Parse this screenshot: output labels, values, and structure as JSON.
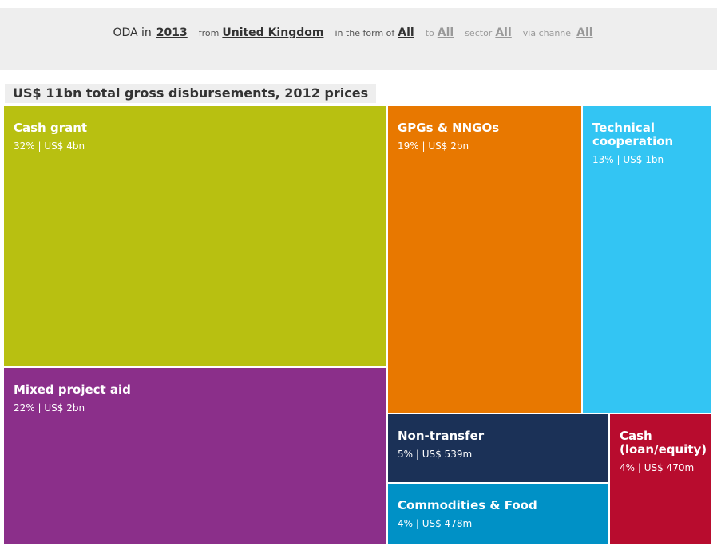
{
  "filters": {
    "oda_label": "ODA in",
    "year": "2013",
    "from_label": "from",
    "donor": "United Kingdom",
    "form_label": "in the form of",
    "form": "All",
    "to_label": "to",
    "to": "All",
    "sector_label": "sector",
    "sector": "All",
    "channel_label": "via channel",
    "channel": "All"
  },
  "chart_data": {
    "type": "treemap",
    "title": "US$ 11bn total gross disbursements, 2012 prices",
    "items": [
      {
        "name": "Cash grant",
        "name_lines": [
          "Cash grant"
        ],
        "percent": 32,
        "amount": "US$ 4bn",
        "value_label": "32% | US$ 4bn",
        "color": "#b8c011"
      },
      {
        "name": "Mixed project aid",
        "name_lines": [
          "Mixed project aid"
        ],
        "percent": 22,
        "amount": "US$ 2bn",
        "value_label": "22% | US$ 2bn",
        "color": "#8b2f8a"
      },
      {
        "name": "GPGs & NNGOs",
        "name_lines": [
          "GPGs & NNGOs"
        ],
        "percent": 19,
        "amount": "US$ 2bn",
        "value_label": "19% | US$ 2bn",
        "color": "#e87800"
      },
      {
        "name": "Technical cooperation",
        "name_lines": [
          "Technical",
          "cooperation"
        ],
        "percent": 13,
        "amount": "US$ 1bn",
        "value_label": "13% | US$ 1bn",
        "color": "#33c5f3"
      },
      {
        "name": "Non-transfer",
        "name_lines": [
          "Non-transfer"
        ],
        "percent": 5,
        "amount": "US$ 539m",
        "value_label": "5% | US$ 539m",
        "color": "#1b3157"
      },
      {
        "name": "Commodities & Food",
        "name_lines": [
          "Commodities & Food"
        ],
        "percent": 4,
        "amount": "US$ 478m",
        "value_label": "4% | US$ 478m",
        "color": "#0091c6"
      },
      {
        "name": "Cash (loan/equity)",
        "name_lines": [
          "Cash",
          "(loan/equity)"
        ],
        "percent": 4,
        "amount": "US$ 470m",
        "value_label": "4% | US$ 470m",
        "color": "#b80c2e"
      }
    ]
  }
}
